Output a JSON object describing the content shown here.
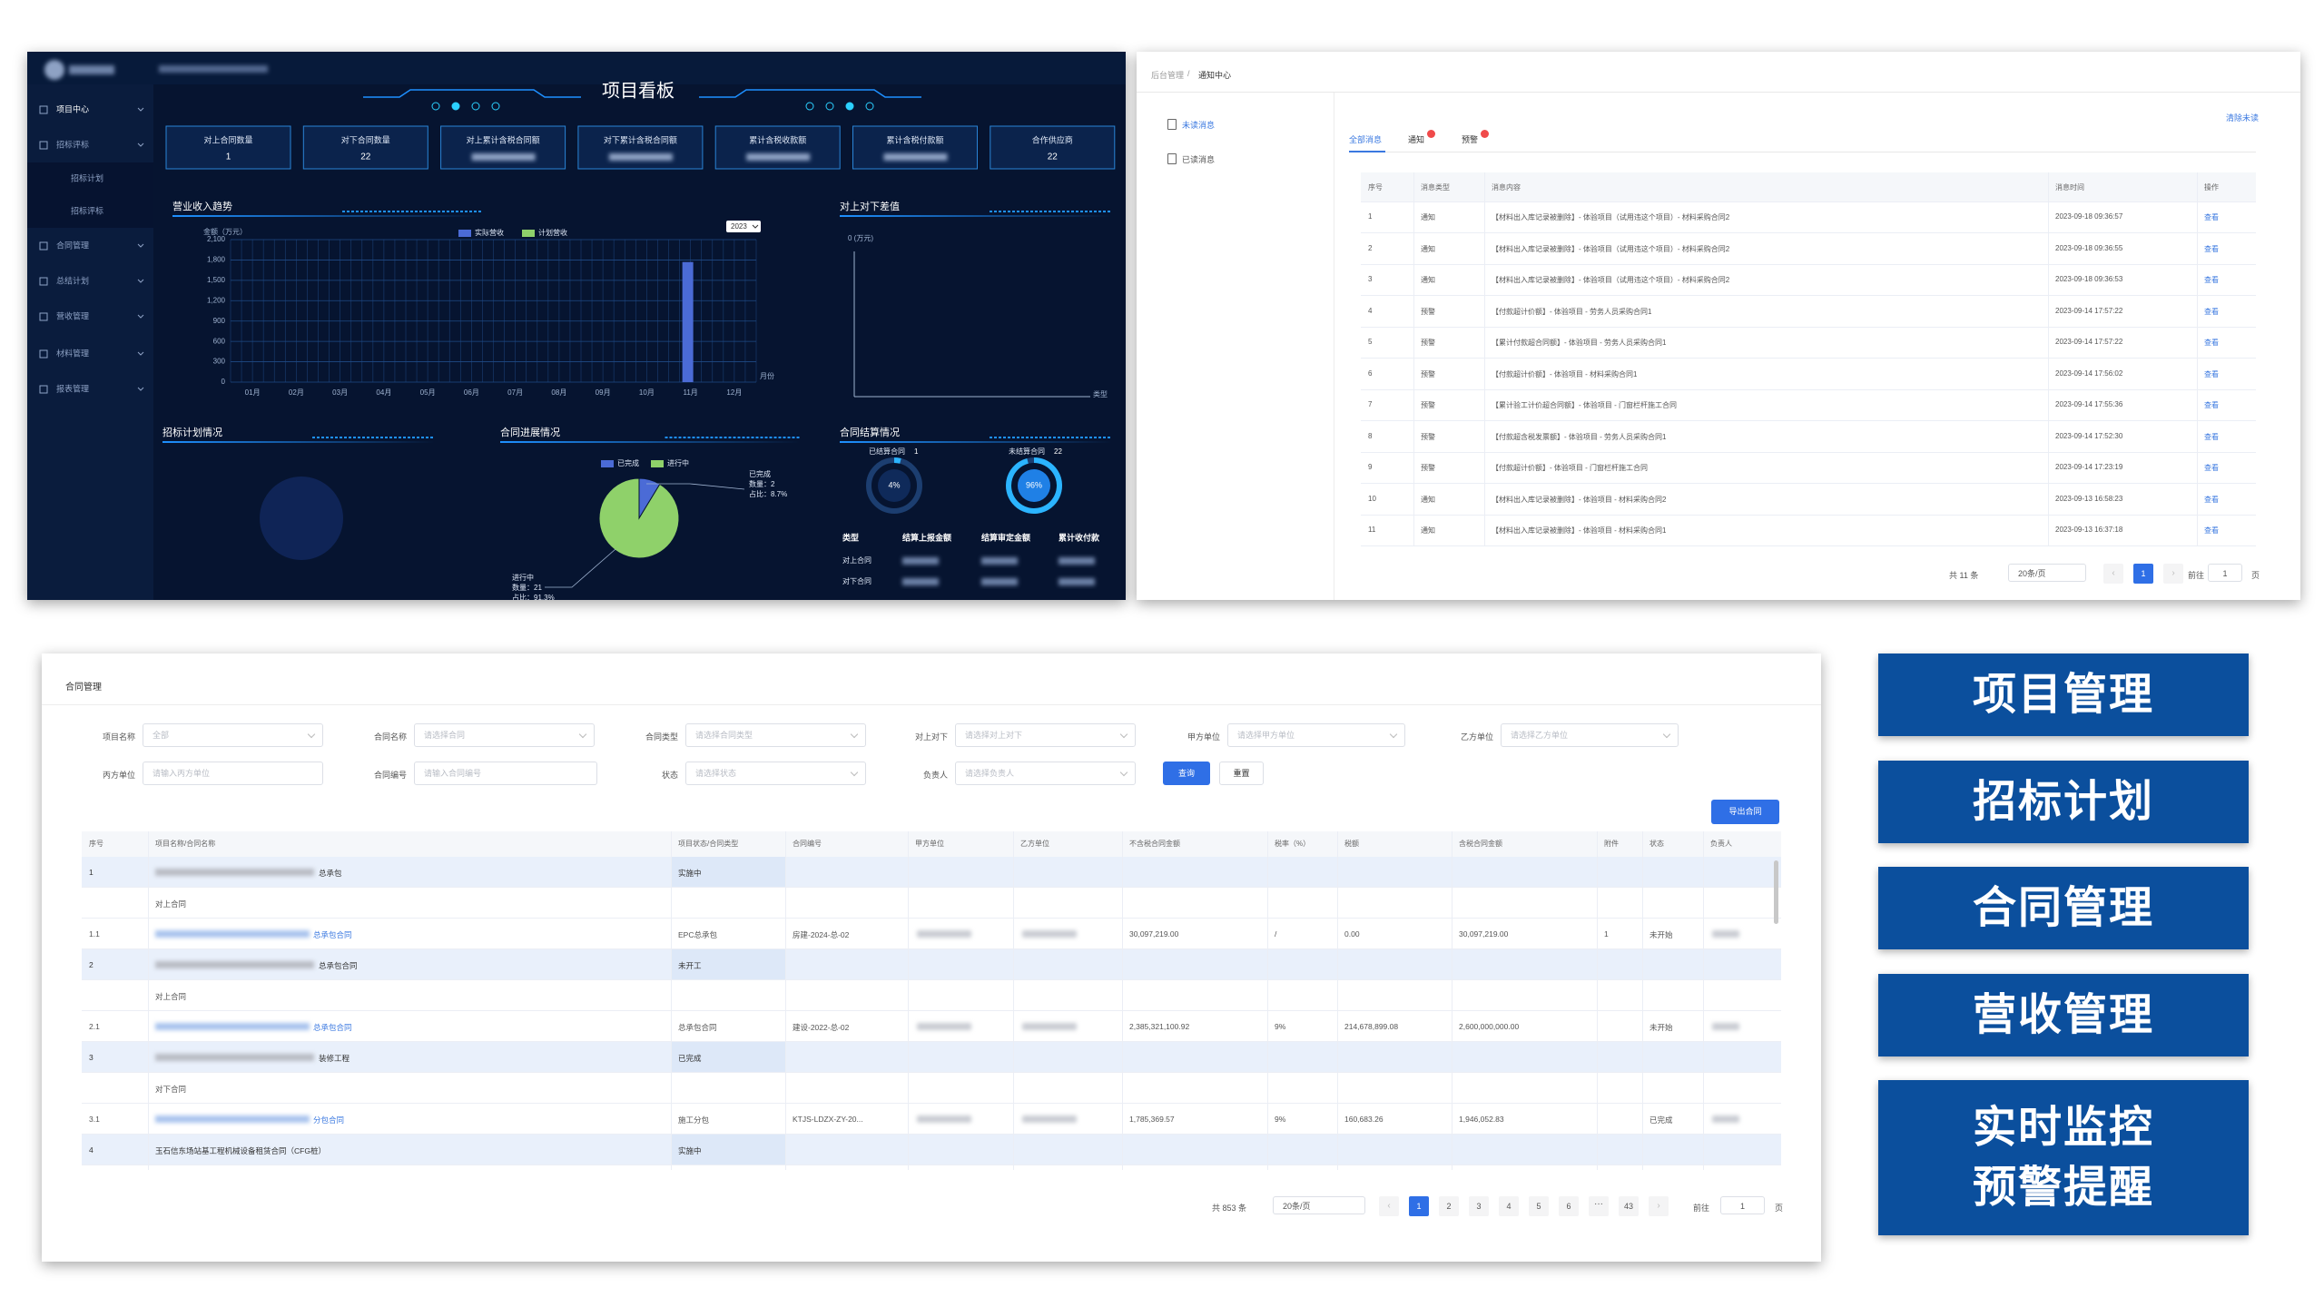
{
  "dashboard": {
    "title": "项目看板",
    "menu": [
      "项目中心",
      "招标评标",
      "招标计划",
      "招标评标",
      "合同管理",
      "总结计划",
      "营收管理",
      "材料管理",
      "报表管理"
    ],
    "stats": [
      {
        "label": "对上合同数量",
        "value": 1
      },
      {
        "label": "对下合同数量",
        "value": 22
      },
      {
        "label": "对上累计含税合同额"
      },
      {
        "label": "对下累计含税合同额"
      },
      {
        "label": "累计含税收款额"
      },
      {
        "label": "累计含税付款额"
      },
      {
        "label": "合作供应商",
        "value": 22
      }
    ],
    "revenue_chart": {
      "type": "bar",
      "title": "营业收入趋势",
      "y_label": "金额（万元）",
      "x_label": "月份",
      "year": "2023",
      "categories": [
        "01月",
        "02月",
        "03月",
        "04月",
        "05月",
        "06月",
        "07月",
        "08月",
        "09月",
        "10月",
        "11月",
        "12月"
      ],
      "series": [
        {
          "name": "实际营收",
          "color": "#4b6bd6",
          "values": [
            0,
            0,
            0,
            0,
            0,
            0,
            0,
            0,
            0,
            0,
            1770,
            0
          ]
        },
        {
          "name": "计划营收",
          "color": "#8fd16a",
          "values": [
            0,
            0,
            0,
            0,
            0,
            0,
            0,
            0,
            0,
            0,
            0,
            0
          ]
        }
      ],
      "ylim": [
        0,
        2100
      ],
      "yticks": [
        0,
        300,
        600,
        900,
        {
          "value": 1200,
          "label": "1,200"
        },
        {
          "value": 1500,
          "label": "1,500"
        },
        {
          "value": 1800,
          "label": "1,800"
        },
        {
          "value": 2100,
          "label": "2,100"
        }
      ],
      "grid": true
    },
    "diff_chart": {
      "title": "对上对下差值",
      "y_label": "0 (万元)",
      "x_label": "类型"
    },
    "bid_chart": {
      "title": "招标计划情况"
    },
    "progress_chart": {
      "type": "pie",
      "title": "合同进展情况",
      "categories": [
        "已完成",
        "进行中"
      ],
      "values": [
        2,
        21
      ],
      "colors": [
        "#4b6bd6",
        "#8fd16a"
      ],
      "annotations": [
        [
          "已完成",
          "数量：2",
          "占比：8.7%"
        ],
        [
          "进行中",
          "数量：21",
          "占比：91.3%"
        ]
      ]
    },
    "settlement": {
      "title": "合同结算情况",
      "gauges": [
        {
          "label": "已结算合同",
          "count": 1,
          "percent": 4,
          "percent_label": "4%"
        },
        {
          "label": "未结算合同",
          "count": 22,
          "percent": 96,
          "percent_label": "96%"
        }
      ],
      "headers": [
        "类型",
        "结算上报金额",
        "结算审定金额",
        "累计收付款"
      ],
      "rows": [
        "对上合同",
        "对下合同"
      ]
    }
  },
  "notifications": {
    "breadcrumb": [
      "后台管理",
      "/",
      "通知中心"
    ],
    "side_menu": [
      "未读消息",
      "已读消息"
    ],
    "tabs": [
      "全部消息",
      "通知",
      "预警"
    ],
    "clear": "清除未读",
    "headers": [
      "序号",
      "消息类型",
      "消息内容",
      "消息时间",
      "操作"
    ],
    "rows": [
      [
        1,
        "通知",
        "【材料出入库记录被删除】- 体验项目（试用违这个项目）- 材料采购合同2",
        "2023-09-18 09:36:57",
        "查看"
      ],
      [
        2,
        "通知",
        "【材料出入库记录被删除】- 体验项目（试用违这个项目）- 材料采购合同2",
        "2023-09-18 09:36:55",
        "查看"
      ],
      [
        3,
        "通知",
        "【材料出入库记录被删除】- 体验项目（试用违这个项目）- 材料采购合同2",
        "2023-09-18 09:36:53",
        "查看"
      ],
      [
        4,
        "预警",
        "【付款超计价额】- 体验项目 - 劳务人员采购合同1",
        "2023-09-14 17:57:22",
        "查看"
      ],
      [
        5,
        "预警",
        "【累计付款超合同额】- 体验项目 - 劳务人员采购合同1",
        "2023-09-14 17:57:22",
        "查看"
      ],
      [
        6,
        "预警",
        "【付款超计价额】- 体验项目 - 材料采购合同1",
        "2023-09-14 17:56:02",
        "查看"
      ],
      [
        7,
        "预警",
        "【累计验工计价超合同额】- 体验项目 - 门窗栏杆施工合同",
        "2023-09-14 17:55:36",
        "查看"
      ],
      [
        8,
        "预警",
        "【付款超含税发票额】- 体验项目 - 劳务人员采购合同1",
        "2023-09-14 17:52:30",
        "查看"
      ],
      [
        9,
        "预警",
        "【付款超计价额】- 体验项目 - 门窗栏杆施工合同",
        "2023-09-14 17:23:19",
        "查看"
      ],
      [
        10,
        "通知",
        "【材料出入库记录被删除】- 体验项目 - 材料采购合同2",
        "2023-09-13 16:58:23",
        "查看"
      ],
      [
        11,
        "通知",
        "【材料出入库记录被删除】- 体验项目 - 材料采购合同1",
        "2023-09-13 16:37:18",
        "查看"
      ]
    ],
    "pagination": {
      "total": "共 11 条",
      "page_size": "20条/页",
      "pages": [
        1
      ],
      "goto": "前往",
      "goto_value": 1,
      "page_unit": "页"
    }
  },
  "contracts": {
    "title": "合同管理",
    "filters": [
      {
        "label": "项目名称",
        "placeholder": "全部"
      },
      {
        "label": "合同名称",
        "placeholder": "请选择合同"
      },
      {
        "label": "合同类型",
        "placeholder": "请选择合同类型"
      },
      {
        "label": "对上对下",
        "placeholder": "请选择对上对下"
      },
      {
        "label": "甲方单位",
        "placeholder": "请选择甲方单位"
      },
      {
        "label": "乙方单位",
        "placeholder": "请选择乙方单位"
      },
      {
        "label": "丙方单位",
        "placeholder": "请输入丙方单位"
      },
      {
        "label": "合同编号",
        "placeholder": "请输入合同编号"
      },
      {
        "label": "状态",
        "placeholder": "请选择状态"
      },
      {
        "label": "负责人",
        "placeholder": "请选择负责人"
      }
    ],
    "search": "查询",
    "reset": "重置",
    "export": "导出合同",
    "headers": [
      "序号",
      "项目名称/合同名称",
      "项目状态/合同类型",
      "合同编号",
      "甲方单位",
      "乙方单位",
      "不含税合同金额",
      "税率（%）",
      "税额",
      "含税合同金额",
      "附件",
      "状态",
      "负责人"
    ],
    "projects": [
      {
        "no": "1",
        "name": "总承包",
        "status": "实施中",
        "group": "对上合同",
        "contracts": [
          {
            "no": "1.1",
            "name": "总承包合同",
            "type": "EPC总承包",
            "code": "房建-2024-总-02",
            "amount_ex_tax": "30,097,219.00",
            "tax_rate": "/",
            "tax": "0.00",
            "amount": "30,097,219.00",
            "attachments": 1,
            "status": "未开始"
          }
        ]
      },
      {
        "no": "2",
        "name": "总承包合同",
        "status": "未开工",
        "group": "对上合同",
        "contracts": [
          {
            "no": "2.1",
            "name": "总承包合同",
            "type": "总承包合同",
            "code": "建设-2022-总-02",
            "amount_ex_tax": "2,385,321,100.92",
            "tax_rate": "9%",
            "tax": "214,678,899.08",
            "amount": "2,600,000,000.00",
            "status": "未开始"
          }
        ]
      },
      {
        "no": "3",
        "name": "装修工程",
        "status": "已完成",
        "group": "对下合同",
        "contracts": [
          {
            "no": "3.1",
            "name": "分包合同",
            "type": "施工分包",
            "code": "KTJS-LDZX-ZY-20...",
            "amount_ex_tax": "1,785,369.57",
            "tax_rate": "9%",
            "tax": "160,683.26",
            "amount": "1,946,052.83",
            "status": "已完成"
          }
        ]
      },
      {
        "no": "4",
        "name": "玉石信东场站基工程机械设备租赁合同（CFG桩）",
        "status": "实施中"
      }
    ],
    "pagination": {
      "total": "共 853 条",
      "page_size": "20条/页",
      "pages": [
        1,
        2,
        3,
        4,
        5,
        6,
        43
      ],
      "goto": "前往",
      "goto_value": 1,
      "page_unit": "页"
    }
  },
  "features": [
    [
      "项目管理"
    ],
    [
      "招标计划"
    ],
    [
      "合同管理"
    ],
    [
      "营收管理"
    ],
    [
      "实时监控",
      "预警提醒"
    ]
  ]
}
